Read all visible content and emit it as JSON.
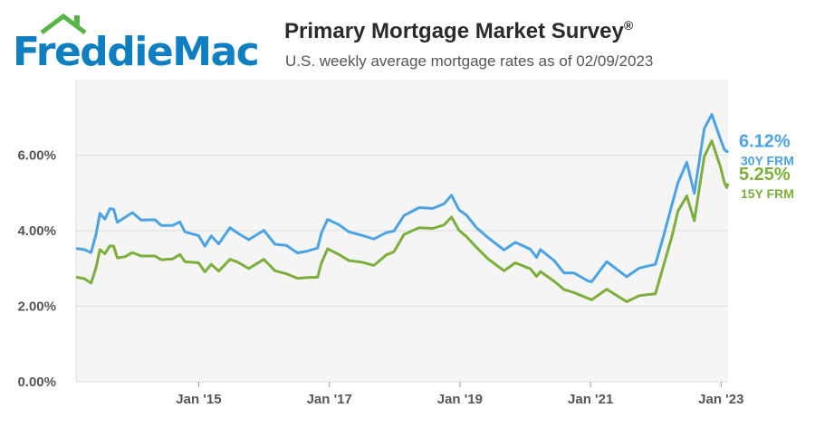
{
  "brand": {
    "logo_text": "FreddieMac",
    "color": "#0f7fc2",
    "roof_color": "#59b447"
  },
  "header": {
    "title": "Primary Mortgage Market Survey",
    "title_mark": "®",
    "subtitle": "U.S. weekly average mortgage rates as of 02/09/2023"
  },
  "chart_data": {
    "type": "line",
    "x_range": [
      "2013-02-14",
      "2023-02-09"
    ],
    "ylim": [
      0,
      8
    ],
    "y_ticks": [
      {
        "value": 0,
        "label": "0.00%"
      },
      {
        "value": 2,
        "label": "2.00%"
      },
      {
        "value": 4,
        "label": "4.00%"
      },
      {
        "value": 6,
        "label": "6.00%"
      }
    ],
    "x_ticks": [
      {
        "date": "2015-01-01",
        "label": "Jan '15"
      },
      {
        "date": "2017-01-01",
        "label": "Jan '17"
      },
      {
        "date": "2019-01-01",
        "label": "Jan '19"
      },
      {
        "date": "2021-01-01",
        "label": "Jan '21"
      },
      {
        "date": "2023-01-01",
        "label": "Jan '23"
      }
    ],
    "grid": true,
    "series": [
      {
        "name": "30Y FRM",
        "end_value_label": "6.12%",
        "color": "#4ba3e3",
        "points": [
          [
            "2013-02-14",
            3.53
          ],
          [
            "2013-04-01",
            3.5
          ],
          [
            "2013-05-09",
            3.42
          ],
          [
            "2013-06-06",
            3.91
          ],
          [
            "2013-06-27",
            4.46
          ],
          [
            "2013-07-25",
            4.31
          ],
          [
            "2013-08-22",
            4.58
          ],
          [
            "2013-09-12",
            4.57
          ],
          [
            "2013-10-03",
            4.22
          ],
          [
            "2013-11-14",
            4.35
          ],
          [
            "2013-12-26",
            4.48
          ],
          [
            "2014-02-13",
            4.28
          ],
          [
            "2014-05-01",
            4.29
          ],
          [
            "2014-06-05",
            4.14
          ],
          [
            "2014-08-07",
            4.14
          ],
          [
            "2014-09-18",
            4.23
          ],
          [
            "2014-10-16",
            3.97
          ],
          [
            "2014-12-31",
            3.87
          ],
          [
            "2015-02-05",
            3.59
          ],
          [
            "2015-03-12",
            3.86
          ],
          [
            "2015-04-23",
            3.65
          ],
          [
            "2015-06-25",
            4.08
          ],
          [
            "2015-08-06",
            3.94
          ],
          [
            "2015-10-08",
            3.76
          ],
          [
            "2015-12-31",
            4.01
          ],
          [
            "2016-03-03",
            3.64
          ],
          [
            "2016-05-05",
            3.61
          ],
          [
            "2016-07-07",
            3.41
          ],
          [
            "2016-09-01",
            3.46
          ],
          [
            "2016-10-27",
            3.54
          ],
          [
            "2016-11-17",
            3.94
          ],
          [
            "2016-12-22",
            4.3
          ],
          [
            "2017-02-23",
            4.16
          ],
          [
            "2017-04-20",
            3.97
          ],
          [
            "2017-06-29",
            3.88
          ],
          [
            "2017-09-07",
            3.78
          ],
          [
            "2017-11-16",
            3.95
          ],
          [
            "2017-12-28",
            3.99
          ],
          [
            "2018-02-22",
            4.4
          ],
          [
            "2018-05-17",
            4.61
          ],
          [
            "2018-08-02",
            4.59
          ],
          [
            "2018-10-04",
            4.71
          ],
          [
            "2018-11-15",
            4.94
          ],
          [
            "2018-12-27",
            4.55
          ],
          [
            "2019-02-07",
            4.41
          ],
          [
            "2019-04-04",
            4.08
          ],
          [
            "2019-06-06",
            3.82
          ],
          [
            "2019-09-05",
            3.49
          ],
          [
            "2019-11-07",
            3.69
          ],
          [
            "2020-01-30",
            3.51
          ],
          [
            "2020-03-05",
            3.29
          ],
          [
            "2020-03-26",
            3.5
          ],
          [
            "2020-06-11",
            3.21
          ],
          [
            "2020-08-06",
            2.88
          ],
          [
            "2020-10-01",
            2.88
          ],
          [
            "2020-12-17",
            2.67
          ],
          [
            "2021-01-07",
            2.65
          ],
          [
            "2021-04-01",
            3.18
          ],
          [
            "2021-07-22",
            2.78
          ],
          [
            "2021-09-30",
            3.01
          ],
          [
            "2021-12-30",
            3.11
          ],
          [
            "2022-02-17",
            3.92
          ],
          [
            "2022-03-31",
            4.67
          ],
          [
            "2022-05-05",
            5.27
          ],
          [
            "2022-06-23",
            5.81
          ],
          [
            "2022-08-04",
            4.99
          ],
          [
            "2022-09-29",
            6.7
          ],
          [
            "2022-11-10",
            7.08
          ],
          [
            "2022-12-29",
            6.42
          ],
          [
            "2023-01-19",
            6.15
          ],
          [
            "2023-02-02",
            6.09
          ],
          [
            "2023-02-09",
            6.12
          ]
        ]
      },
      {
        "name": "15Y FRM",
        "end_value_label": "5.25%",
        "color": "#7cae3b",
        "points": [
          [
            "2013-02-14",
            2.77
          ],
          [
            "2013-04-01",
            2.73
          ],
          [
            "2013-05-09",
            2.61
          ],
          [
            "2013-06-06",
            3.03
          ],
          [
            "2013-06-27",
            3.5
          ],
          [
            "2013-07-25",
            3.39
          ],
          [
            "2013-08-22",
            3.6
          ],
          [
            "2013-09-12",
            3.59
          ],
          [
            "2013-10-03",
            3.28
          ],
          [
            "2013-11-14",
            3.31
          ],
          [
            "2013-12-26",
            3.42
          ],
          [
            "2014-02-13",
            3.33
          ],
          [
            "2014-05-01",
            3.33
          ],
          [
            "2014-06-05",
            3.23
          ],
          [
            "2014-08-07",
            3.25
          ],
          [
            "2014-09-18",
            3.37
          ],
          [
            "2014-10-16",
            3.18
          ],
          [
            "2014-12-31",
            3.15
          ],
          [
            "2015-02-05",
            2.91
          ],
          [
            "2015-03-12",
            3.11
          ],
          [
            "2015-04-23",
            2.93
          ],
          [
            "2015-06-25",
            3.24
          ],
          [
            "2015-08-06",
            3.17
          ],
          [
            "2015-10-08",
            3.0
          ],
          [
            "2015-12-31",
            3.24
          ],
          [
            "2016-03-03",
            2.94
          ],
          [
            "2016-05-05",
            2.86
          ],
          [
            "2016-07-07",
            2.74
          ],
          [
            "2016-09-01",
            2.76
          ],
          [
            "2016-10-27",
            2.77
          ],
          [
            "2016-11-17",
            3.14
          ],
          [
            "2016-12-22",
            3.52
          ],
          [
            "2017-02-23",
            3.37
          ],
          [
            "2017-04-20",
            3.21
          ],
          [
            "2017-06-29",
            3.17
          ],
          [
            "2017-09-07",
            3.08
          ],
          [
            "2017-11-16",
            3.36
          ],
          [
            "2017-12-28",
            3.44
          ],
          [
            "2018-02-22",
            3.9
          ],
          [
            "2018-05-17",
            4.08
          ],
          [
            "2018-08-02",
            4.06
          ],
          [
            "2018-10-04",
            4.15
          ],
          [
            "2018-11-15",
            4.36
          ],
          [
            "2018-12-27",
            4.01
          ],
          [
            "2019-02-07",
            3.84
          ],
          [
            "2019-04-04",
            3.56
          ],
          [
            "2019-06-06",
            3.26
          ],
          [
            "2019-09-05",
            2.94
          ],
          [
            "2019-11-07",
            3.15
          ],
          [
            "2020-01-30",
            2.99
          ],
          [
            "2020-03-05",
            2.79
          ],
          [
            "2020-03-26",
            2.92
          ],
          [
            "2020-06-11",
            2.66
          ],
          [
            "2020-08-06",
            2.44
          ],
          [
            "2020-10-01",
            2.36
          ],
          [
            "2020-12-17",
            2.21
          ],
          [
            "2021-01-07",
            2.17
          ],
          [
            "2021-04-01",
            2.45
          ],
          [
            "2021-07-22",
            2.12
          ],
          [
            "2021-09-30",
            2.28
          ],
          [
            "2021-12-30",
            2.33
          ],
          [
            "2022-02-17",
            3.14
          ],
          [
            "2022-03-31",
            3.83
          ],
          [
            "2022-05-05",
            4.52
          ],
          [
            "2022-06-23",
            4.92
          ],
          [
            "2022-08-04",
            4.26
          ],
          [
            "2022-09-29",
            5.96
          ],
          [
            "2022-11-10",
            6.38
          ],
          [
            "2022-12-29",
            5.68
          ],
          [
            "2023-01-19",
            5.28
          ],
          [
            "2023-02-02",
            5.14
          ],
          [
            "2023-02-09",
            5.25
          ]
        ]
      }
    ]
  }
}
